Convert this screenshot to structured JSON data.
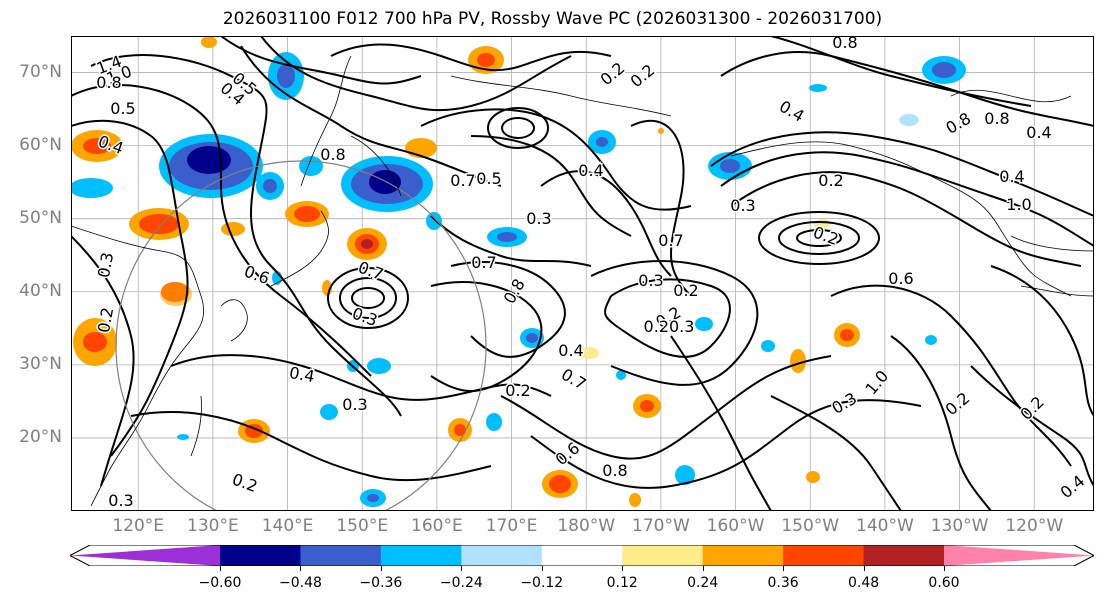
{
  "title": "2026031100 F012 700 hPa PV, Rossby Wave PC (2026031300 - 2026031700)",
  "map": {
    "projection": "cylindrical",
    "region": "North Pacific",
    "lat_range": [
      10,
      75
    ],
    "lon_range": [
      111,
      248
    ],
    "lat_labels": [
      "70°N",
      "60°N",
      "50°N",
      "40°N",
      "30°N",
      "20°N"
    ],
    "lat_values": [
      70,
      60,
      50,
      40,
      30,
      20
    ],
    "lon_labels": [
      "120°E",
      "130°E",
      "140°E",
      "150°E",
      "160°E",
      "170°E",
      "180°W",
      "170°W",
      "160°W",
      "150°W",
      "140°W",
      "130°W",
      "120°W"
    ],
    "lon_values": [
      120,
      130,
      140,
      150,
      160,
      170,
      180,
      190,
      200,
      210,
      220,
      230,
      240
    ],
    "contour_labels": [
      "1.4",
      "1.0",
      "0.8",
      "0.5",
      "0.4",
      "0.5",
      "0.4",
      "0.8",
      "0.3",
      "0.2",
      "0.6",
      "0.7",
      "0.3",
      "0.2",
      "0.3",
      "0.4",
      "0.3",
      "0.2",
      "0.20.3",
      "0.2",
      "0.3",
      "0.7",
      "0.8",
      "0.3",
      "0.2",
      "0.4",
      "0.7",
      "0.6",
      "0.8",
      "0.7",
      "0.3",
      "0.2",
      "0.2",
      "0.4",
      "0.8",
      "0.8",
      "0.8",
      "0.4",
      "0.4",
      "1.0",
      "0.6",
      "1.0",
      "0.3",
      "0.2",
      "0.2",
      "0.4",
      "0.4",
      "0.2",
      "0.2",
      "0.5",
      "0.7"
    ]
  },
  "colorbar": {
    "levels": [
      "−0.60",
      "−0.48",
      "−0.36",
      "−0.24",
      "−0.12",
      "0.12",
      "0.24",
      "0.36",
      "0.48",
      "0.60"
    ],
    "level_values": [
      -0.6,
      -0.48,
      -0.36,
      -0.24,
      -0.12,
      0.12,
      0.24,
      0.36,
      0.48,
      0.6
    ],
    "colors": [
      "#9b30d9",
      "#00008b",
      "#3a5fcd",
      "#00bfff",
      "#b0e2ff",
      "#ffffff",
      "#ffec8b",
      "#ffa500",
      "#ff4500",
      "#b22222",
      "#ff82ab"
    ]
  }
}
